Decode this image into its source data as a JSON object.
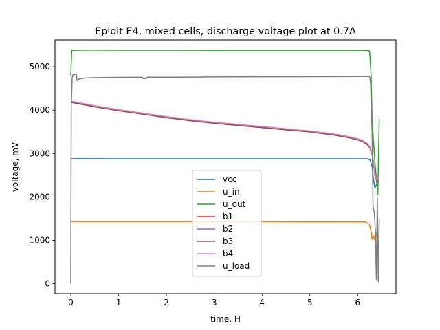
{
  "chart_data": {
    "type": "line",
    "title": "Eploit E4, mixed cells, discharge voltage plot at 0.7A",
    "xlabel": "time, H",
    "ylabel": "voltage, mV",
    "xlim": [
      -0.33,
      6.8
    ],
    "ylim": [
      -230,
      5620
    ],
    "xticks": [
      0,
      1,
      2,
      3,
      4,
      5,
      6
    ],
    "yticks": [
      0,
      1000,
      2000,
      3000,
      4000,
      5000
    ],
    "grid": false,
    "legend_position": "lower-center",
    "series": [
      {
        "name": "vcc",
        "color": "#1f77b4",
        "points": [
          [
            0,
            2880
          ],
          [
            0.05,
            2880
          ],
          [
            1,
            2878
          ],
          [
            2,
            2878
          ],
          [
            3,
            2878
          ],
          [
            4,
            2878
          ],
          [
            5,
            2878
          ],
          [
            6,
            2878
          ],
          [
            6.2,
            2878
          ],
          [
            6.26,
            2850
          ],
          [
            6.3,
            2700
          ],
          [
            6.33,
            2400
          ],
          [
            6.36,
            2200
          ],
          [
            6.4,
            2300
          ],
          [
            6.43,
            2350
          ]
        ]
      },
      {
        "name": "u_in",
        "color": "#ff7f0e",
        "points": [
          [
            0,
            1430
          ],
          [
            0.05,
            1430
          ],
          [
            1,
            1428
          ],
          [
            2,
            1428
          ],
          [
            3,
            1428
          ],
          [
            4,
            1426
          ],
          [
            5,
            1425
          ],
          [
            6,
            1425
          ],
          [
            6.15,
            1422
          ],
          [
            6.2,
            1400
          ],
          [
            6.25,
            1340
          ],
          [
            6.29,
            1150
          ],
          [
            6.3,
            1020
          ],
          [
            6.33,
            1100
          ],
          [
            6.36,
            1000
          ],
          [
            6.4,
            1200
          ]
        ]
      },
      {
        "name": "u_out",
        "color": "#2ca02c",
        "points": [
          [
            0,
            4800
          ],
          [
            0.02,
            5380
          ],
          [
            0.5,
            5385
          ],
          [
            1,
            5383
          ],
          [
            2,
            5382
          ],
          [
            3,
            5380
          ],
          [
            4,
            5380
          ],
          [
            5,
            5380
          ],
          [
            6,
            5380
          ],
          [
            6.2,
            5378
          ],
          [
            6.25,
            5360
          ],
          [
            6.28,
            4800
          ],
          [
            6.3,
            3800
          ],
          [
            6.33,
            3300
          ],
          [
            6.36,
            2800
          ],
          [
            6.4,
            2300
          ],
          [
            6.42,
            2050
          ],
          [
            6.45,
            3800
          ]
        ]
      },
      {
        "name": "b1",
        "color": "#d62728",
        "points": [
          [
            0,
            4200
          ],
          [
            0.5,
            4090
          ],
          [
            1,
            4000
          ],
          [
            1.5,
            3920
          ],
          [
            2,
            3840
          ],
          [
            2.5,
            3770
          ],
          [
            3,
            3710
          ],
          [
            3.5,
            3660
          ],
          [
            4,
            3610
          ],
          [
            4.5,
            3560
          ],
          [
            5,
            3510
          ],
          [
            5.5,
            3440
          ],
          [
            5.8,
            3380
          ],
          [
            6,
            3330
          ],
          [
            6.1,
            3290
          ],
          [
            6.2,
            3220
          ],
          [
            6.25,
            3150
          ],
          [
            6.3,
            3000
          ],
          [
            6.33,
            2800
          ],
          [
            6.36,
            2500
          ],
          [
            6.4,
            2380
          ],
          [
            6.44,
            2380
          ]
        ]
      },
      {
        "name": "b2",
        "color": "#9467bd",
        "points": [
          [
            0,
            4190
          ],
          [
            0.5,
            4080
          ],
          [
            1,
            3990
          ],
          [
            1.5,
            3910
          ],
          [
            2,
            3830
          ],
          [
            2.5,
            3760
          ],
          [
            3,
            3700
          ],
          [
            3.5,
            3650
          ],
          [
            4,
            3600
          ],
          [
            4.5,
            3550
          ],
          [
            5,
            3500
          ],
          [
            5.5,
            3430
          ],
          [
            5.8,
            3370
          ],
          [
            6,
            3320
          ],
          [
            6.1,
            3280
          ],
          [
            6.2,
            3210
          ],
          [
            6.25,
            3140
          ],
          [
            6.3,
            2990
          ],
          [
            6.33,
            2790
          ],
          [
            6.36,
            2490
          ],
          [
            6.4,
            2370
          ],
          [
            6.44,
            2370
          ]
        ]
      },
      {
        "name": "b3",
        "color": "#8c564b",
        "points": [
          [
            0,
            4180
          ],
          [
            0.5,
            4075
          ],
          [
            1,
            3985
          ],
          [
            1.5,
            3905
          ],
          [
            2,
            3825
          ],
          [
            2.5,
            3755
          ],
          [
            3,
            3695
          ],
          [
            3.5,
            3645
          ],
          [
            4,
            3595
          ],
          [
            4.5,
            3545
          ],
          [
            5,
            3495
          ],
          [
            5.5,
            3425
          ],
          [
            5.8,
            3365
          ],
          [
            6,
            3315
          ],
          [
            6.1,
            3275
          ],
          [
            6.2,
            3205
          ],
          [
            6.25,
            3135
          ],
          [
            6.3,
            2985
          ],
          [
            6.33,
            2785
          ],
          [
            6.36,
            2485
          ],
          [
            6.4,
            2365
          ],
          [
            6.44,
            2365
          ]
        ]
      },
      {
        "name": "b4",
        "color": "#e377c2",
        "points": [
          [
            0,
            4210
          ],
          [
            0.5,
            4100
          ],
          [
            1,
            4010
          ],
          [
            1.5,
            3930
          ],
          [
            2,
            3850
          ],
          [
            2.5,
            3780
          ],
          [
            3,
            3720
          ],
          [
            3.5,
            3670
          ],
          [
            4,
            3620
          ],
          [
            4.5,
            3570
          ],
          [
            5,
            3520
          ],
          [
            5.5,
            3450
          ],
          [
            5.8,
            3390
          ],
          [
            6,
            3340
          ],
          [
            6.1,
            3300
          ],
          [
            6.2,
            3230
          ],
          [
            6.25,
            3160
          ],
          [
            6.3,
            3010
          ],
          [
            6.33,
            2810
          ],
          [
            6.36,
            2510
          ],
          [
            6.4,
            2400
          ],
          [
            6.44,
            2400
          ]
        ]
      },
      {
        "name": "u_load",
        "color": "#7f7f7f",
        "points": [
          [
            0,
            0
          ],
          [
            0.01,
            4100
          ],
          [
            0.03,
            4750
          ],
          [
            0.05,
            4820
          ],
          [
            0.12,
            4830
          ],
          [
            0.13,
            4680
          ],
          [
            0.18,
            4720
          ],
          [
            0.3,
            4740
          ],
          [
            0.5,
            4750
          ],
          [
            1,
            4755
          ],
          [
            1.5,
            4758
          ],
          [
            1.51,
            4730
          ],
          [
            1.58,
            4730
          ],
          [
            1.6,
            4760
          ],
          [
            2,
            4760
          ],
          [
            2.5,
            4762
          ],
          [
            3,
            4765
          ],
          [
            4,
            4770
          ],
          [
            5,
            4772
          ],
          [
            6,
            4775
          ],
          [
            6.25,
            4775
          ],
          [
            6.27,
            4600
          ],
          [
            6.3,
            3500
          ],
          [
            6.32,
            1800
          ],
          [
            6.35,
            1600
          ],
          [
            6.37,
            1200
          ],
          [
            6.39,
            100
          ],
          [
            6.41,
            2000
          ],
          [
            6.43,
            50
          ],
          [
            6.45,
            1500
          ]
        ]
      }
    ]
  }
}
